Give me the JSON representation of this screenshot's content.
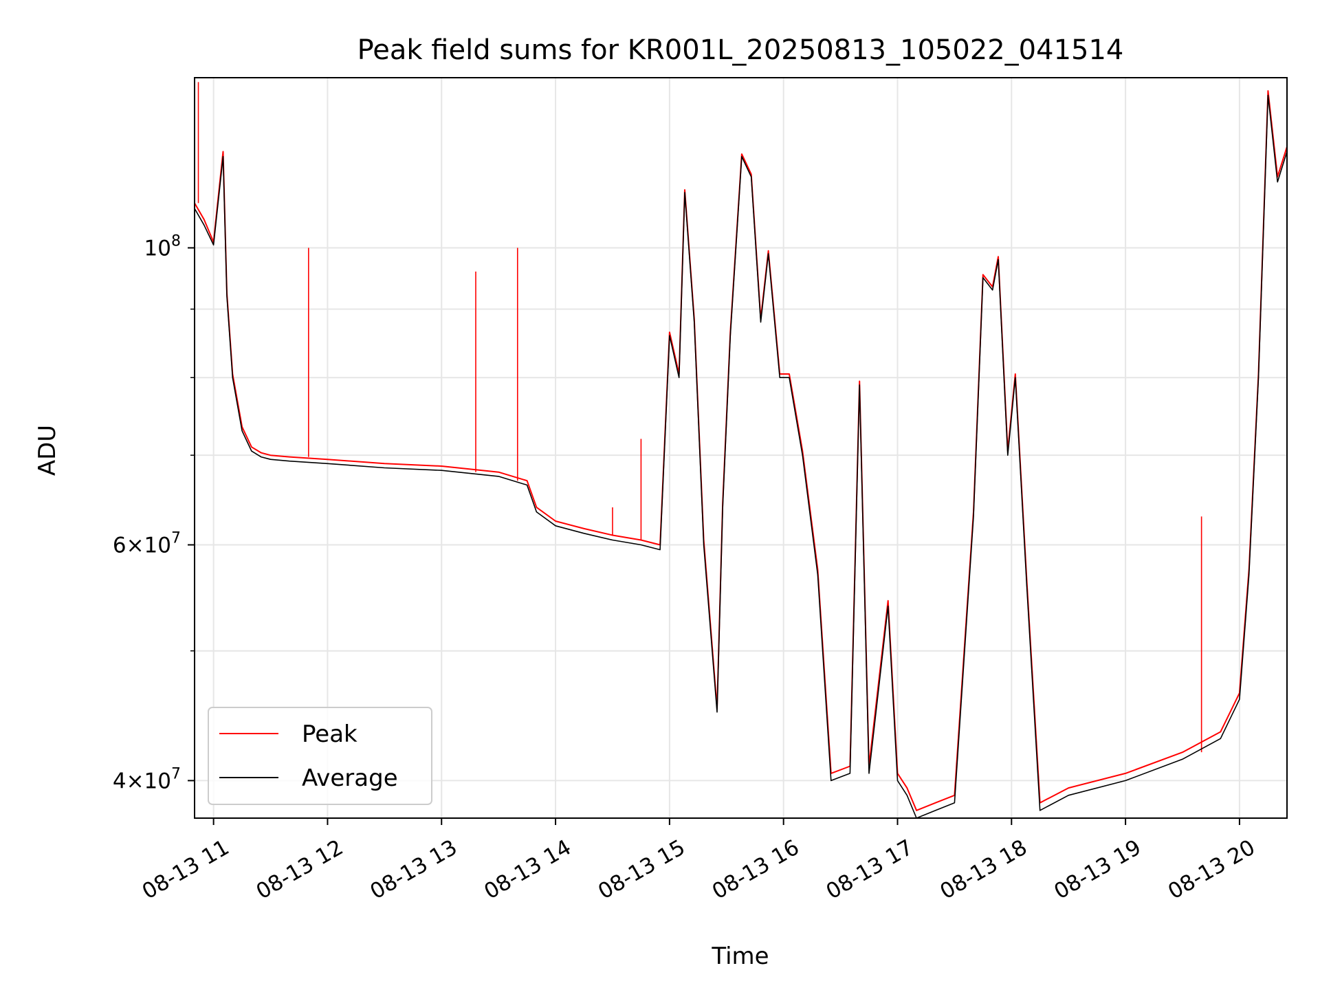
{
  "chart_data": {
    "type": "line",
    "title": "Peak field sums for KR001L_20250813_105022_041514",
    "xlabel": "Time",
    "ylabel": "ADU",
    "yscale": "log",
    "xlim": [
      "08-13 10:50",
      "08-13 20:25"
    ],
    "ylim": [
      37500000,
      134000000
    ],
    "grid": true,
    "legend": "lower-left",
    "x_ticks": [
      "08-13 11",
      "08-13 12",
      "08-13 13",
      "08-13 14",
      "08-13 15",
      "08-13 16",
      "08-13 17",
      "08-13 18",
      "08-13 19",
      "08-13 20"
    ],
    "y_ticks": [
      {
        "value": 100000000,
        "label": "10^8"
      },
      {
        "value": 60000000,
        "label": "6×10^7"
      },
      {
        "value": 40000000,
        "label": "4×10^7"
      }
    ],
    "y_minor_ticks": [
      50000000,
      70000000,
      80000000,
      90000000
    ],
    "series": [
      {
        "name": "Average",
        "color": "#000000",
        "x": [
          "08-13 10:50",
          "08-13 10:55",
          "08-13 11:00",
          "08-13 11:05",
          "08-13 11:07",
          "08-13 11:10",
          "08-13 11:15",
          "08-13 11:20",
          "08-13 11:25",
          "08-13 11:30",
          "08-13 11:40",
          "08-13 12:00",
          "08-13 12:30",
          "08-13 13:00",
          "08-13 13:30",
          "08-13 13:45",
          "08-13 13:50",
          "08-13 14:00",
          "08-13 14:15",
          "08-13 14:30",
          "08-13 14:45",
          "08-13 14:55",
          "08-13 15:00",
          "08-13 15:05",
          "08-13 15:08",
          "08-13 15:13",
          "08-13 15:18",
          "08-13 15:25",
          "08-13 15:28",
          "08-13 15:32",
          "08-13 15:38",
          "08-13 15:43",
          "08-13 15:48",
          "08-13 15:52",
          "08-13 15:58",
          "08-13 16:03",
          "08-13 16:10",
          "08-13 16:18",
          "08-13 16:25",
          "08-13 16:35",
          "08-13 16:40",
          "08-13 16:45",
          "08-13 16:55",
          "08-13 17:00",
          "08-13 17:05",
          "08-13 17:10",
          "08-13 17:20",
          "08-13 17:30",
          "08-13 17:40",
          "08-13 17:45",
          "08-13 17:50",
          "08-13 17:53",
          "08-13 17:58",
          "08-13 18:02",
          "08-13 18:08",
          "08-13 18:15",
          "08-13 18:30",
          "08-13 19:00",
          "08-13 19:30",
          "08-13 19:50",
          "08-13 20:00",
          "08-13 20:05",
          "08-13 20:10",
          "08-13 20:15",
          "08-13 20:20",
          "08-13 20:25"
        ],
        "y": [
          107000000,
          104000000,
          100500000,
          117000000,
          92000000,
          80000000,
          73000000,
          70500000,
          69800000,
          69500000,
          69300000,
          69000000,
          68500000,
          68200000,
          67500000,
          66500000,
          63500000,
          62000000,
          61200000,
          60500000,
          60000000,
          59500000,
          86000000,
          80000000,
          110000000,
          88000000,
          60000000,
          45000000,
          64000000,
          86000000,
          117000000,
          113000000,
          88000000,
          99000000,
          80000000,
          80000000,
          70000000,
          57000000,
          40000000,
          40500000,
          79000000,
          40500000,
          54000000,
          40000000,
          39000000,
          37500000,
          38000000,
          38500000,
          63000000,
          95000000,
          93000000,
          98000000,
          70000000,
          80000000,
          56000000,
          38000000,
          39000000,
          40000000,
          41500000,
          43000000,
          46000000,
          57000000,
          80000000,
          130000000,
          112000000,
          118000000
        ]
      },
      {
        "name": "Peak",
        "color": "#ff0000",
        "x": [
          "08-13 10:50",
          "08-13 10:55",
          "08-13 11:00",
          "08-13 11:05",
          "08-13 11:07",
          "08-13 11:10",
          "08-13 11:15",
          "08-13 11:20",
          "08-13 11:25",
          "08-13 11:30",
          "08-13 11:40",
          "08-13 12:00",
          "08-13 12:30",
          "08-13 13:00",
          "08-13 13:30",
          "08-13 13:45",
          "08-13 13:50",
          "08-13 14:00",
          "08-13 14:15",
          "08-13 14:30",
          "08-13 14:45",
          "08-13 14:55",
          "08-13 15:00",
          "08-13 15:05",
          "08-13 15:08",
          "08-13 15:13",
          "08-13 15:18",
          "08-13 15:25",
          "08-13 15:28",
          "08-13 15:32",
          "08-13 15:38",
          "08-13 15:43",
          "08-13 15:48",
          "08-13 15:52",
          "08-13 15:58",
          "08-13 16:03",
          "08-13 16:10",
          "08-13 16:18",
          "08-13 16:25",
          "08-13 16:35",
          "08-13 16:40",
          "08-13 16:45",
          "08-13 16:55",
          "08-13 17:00",
          "08-13 17:05",
          "08-13 17:10",
          "08-13 17:20",
          "08-13 17:30",
          "08-13 17:40",
          "08-13 17:45",
          "08-13 17:50",
          "08-13 17:53",
          "08-13 17:58",
          "08-13 18:02",
          "08-13 18:08",
          "08-13 18:15",
          "08-13 18:30",
          "08-13 19:00",
          "08-13 19:30",
          "08-13 19:50",
          "08-13 20:00",
          "08-13 20:05",
          "08-13 20:10",
          "08-13 20:15",
          "08-13 20:20",
          "08-13 20:25"
        ],
        "y": [
          108000000,
          105000000,
          101000000,
          118000000,
          92500000,
          80500000,
          73500000,
          71000000,
          70300000,
          70000000,
          69800000,
          69500000,
          69000000,
          68700000,
          68000000,
          67000000,
          64000000,
          62500000,
          61700000,
          61000000,
          60500000,
          60000000,
          86500000,
          80500000,
          110500000,
          88500000,
          60500000,
          45300000,
          64500000,
          86500000,
          117500000,
          113500000,
          88500000,
          99500000,
          80500000,
          80500000,
          70500000,
          57500000,
          40500000,
          41000000,
          79500000,
          41000000,
          54500000,
          40500000,
          39500000,
          38000000,
          38500000,
          39000000,
          63500000,
          95500000,
          93500000,
          98500000,
          70500000,
          80500000,
          56500000,
          38500000,
          39500000,
          40500000,
          42000000,
          43500000,
          46500000,
          57500000,
          80500000,
          131000000,
          113000000,
          119000000
        ],
        "spikes": [
          {
            "x": "08-13 10:52",
            "y": 133000000
          },
          {
            "x": "08-13 11:50",
            "y": 100000000
          },
          {
            "x": "08-13 13:18",
            "y": 96000000
          },
          {
            "x": "08-13 13:40",
            "y": 100000000
          },
          {
            "x": "08-13 14:30",
            "y": 64000000
          },
          {
            "x": "08-13 14:45",
            "y": 72000000
          },
          {
            "x": "08-13 19:40",
            "y": 63000000
          }
        ]
      }
    ]
  }
}
